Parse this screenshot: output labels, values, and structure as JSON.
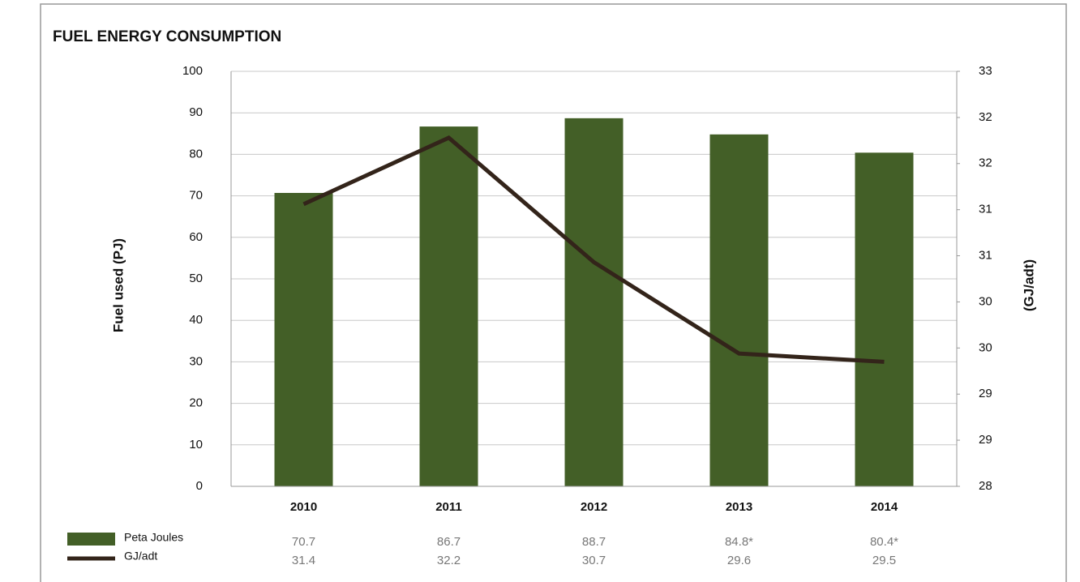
{
  "chart_data": {
    "type": "bar",
    "title": "FUEL ENERGY CONSUMPTION",
    "y_label": "Fuel used  (PJ)",
    "y2_label": "(GJ/adt)",
    "categories": [
      "2010",
      "2011",
      "2012",
      "2013",
      "2014"
    ],
    "series": [
      {
        "name": "Peta Joules",
        "type": "bar",
        "color": "#435f27",
        "values": [
          70.7,
          86.7,
          88.7,
          84.8,
          80.4
        ],
        "value_labels": [
          "70.7",
          "86.7",
          "88.7",
          "84.8*",
          "80.4*"
        ]
      },
      {
        "name": "GJ/adt",
        "type": "line",
        "axis": "y2",
        "color": "#33241a",
        "values": [
          31.4,
          32.2,
          30.7,
          29.6,
          29.5
        ]
      }
    ],
    "ylim": [
      0,
      100
    ],
    "yticks": [
      0,
      10,
      20,
      30,
      40,
      50,
      60,
      70,
      80,
      90,
      100
    ],
    "y2lim": [
      28,
      33
    ],
    "y2ticks": [
      28,
      {
        "value": 28.556,
        "label": "29"
      },
      {
        "value": 29.111,
        "label": "29"
      },
      {
        "value": 29.667,
        "label": "30"
      },
      {
        "value": 30.222,
        "label": "30"
      },
      {
        "value": 30.778,
        "label": "31"
      },
      {
        "value": 31.333,
        "label": "31"
      },
      {
        "value": 31.889,
        "label": "32"
      },
      {
        "value": 32.444,
        "label": "32"
      },
      33
    ],
    "grid": true
  }
}
